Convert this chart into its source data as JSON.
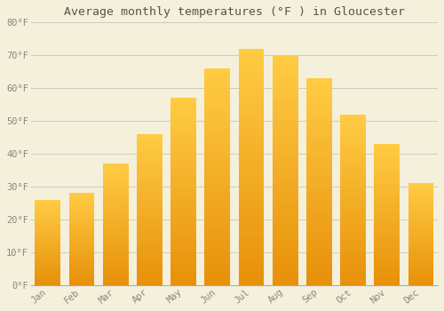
{
  "title": "Average monthly temperatures (°F ) in Gloucester",
  "months": [
    "Jan",
    "Feb",
    "Mar",
    "Apr",
    "May",
    "Jun",
    "Jul",
    "Aug",
    "Sep",
    "Oct",
    "Nov",
    "Dec"
  ],
  "values": [
    26,
    28,
    37,
    46,
    57,
    66,
    72,
    70,
    63,
    52,
    43,
    31
  ],
  "bar_color_top": "#FFCC44",
  "bar_color_bottom": "#E8900A",
  "background_color": "#F5F0DC",
  "grid_color": "#CCCCBB",
  "text_color": "#888877",
  "title_color": "#555544",
  "ylim": [
    0,
    80
  ],
  "yticks": [
    0,
    10,
    20,
    30,
    40,
    50,
    60,
    70,
    80
  ],
  "ytick_labels": [
    "0°F",
    "10°F",
    "20°F",
    "30°F",
    "40°F",
    "50°F",
    "60°F",
    "70°F",
    "80°F"
  ],
  "bar_width": 0.75,
  "figsize": [
    5.0,
    3.5
  ],
  "dpi": 100
}
